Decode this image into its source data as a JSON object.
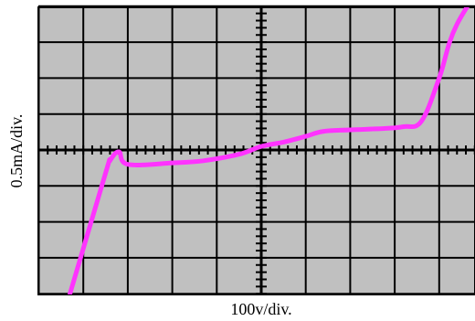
{
  "chart_data": {
    "type": "line",
    "title": "",
    "xlabel": "100v/div.",
    "ylabel": "0.5mA/div.",
    "grid": true,
    "grid_divisions": {
      "x": 12,
      "y": 8
    },
    "xlim": [
      -6.3,
      6.3
    ],
    "ylim": [
      -4,
      4
    ],
    "series": [
      {
        "name": "",
        "x": [
          -4.3,
          -3.5,
          -3.4,
          -3.2,
          -3.0,
          -2.0,
          -1.3,
          -0.5,
          0.0,
          0.5,
          1.0,
          1.4,
          2.0,
          2.8,
          3.2,
          3.6,
          4.0,
          4.4,
          5.3
        ],
        "y": [
          -4.0,
          -0.65,
          -0.3,
          -0.05,
          -0.4,
          -0.36,
          -0.3,
          -0.12,
          0.1,
          0.22,
          0.38,
          0.52,
          0.56,
          0.6,
          0.65,
          0.8,
          2.0,
          3.5,
          5.2
        ]
      }
    ]
  },
  "colors": {
    "background": "#c0c0c0",
    "grid": "#000000",
    "trace": "#ff33ff"
  }
}
